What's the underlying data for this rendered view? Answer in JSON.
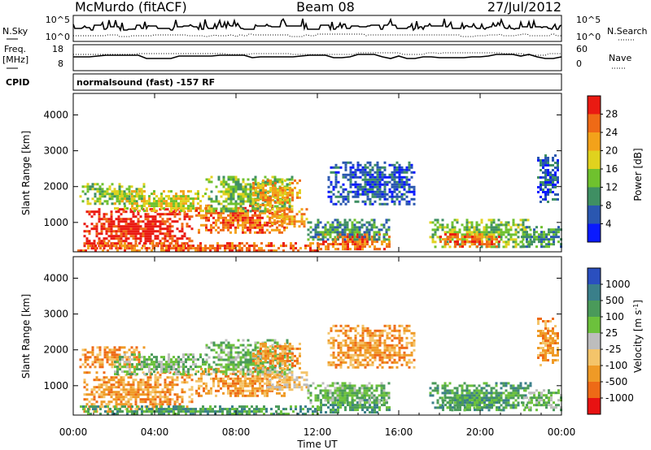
{
  "header": {
    "station": "McMurdo (fitACF)",
    "beam": "Beam 08",
    "date": "27/Jul/2012"
  },
  "panels": {
    "nsky": {
      "left_label": "N.Sky",
      "right_label": "N.Search",
      "left_ticks": [
        "10^5",
        "10^0"
      ],
      "right_ticks": [
        "10^5",
        "10^0"
      ]
    },
    "freq": {
      "left_label_1": "Freq.",
      "left_label_2": "[MHz]",
      "right_label": "Nave",
      "left_ticks": [
        "18",
        "8"
      ],
      "right_ticks": [
        "60",
        "0"
      ]
    },
    "cpid": {
      "label": "CPID",
      "text": "normalsound (fast) -157 RF"
    }
  },
  "colors": {
    "power_scale": [
      "#0a1aff",
      "#2a57b0",
      "#3f8f63",
      "#6fc12e",
      "#e0d21e",
      "#f3a21a",
      "#ef6a16",
      "#ea1a12"
    ],
    "velocity_scale": [
      "#2a4fbf",
      "#3a7f8a",
      "#4a9a5a",
      "#6cc13c",
      "#bdbdbd",
      "#f4c46a",
      "#ef9a26",
      "#ee6a16",
      "#e81212"
    ]
  },
  "chart_data": [
    {
      "type": "heatmap",
      "name": "power",
      "xlabel": "",
      "ylabel": "Slant Range [km]",
      "x_ticks": [
        "00:00",
        "04:00",
        "08:00",
        "12:00",
        "16:00",
        "20:00",
        "00:00"
      ],
      "y_ticks": [
        "1000",
        "2000",
        "3000",
        "4000"
      ],
      "y_tick_values": [
        1000,
        2000,
        3000,
        4000
      ],
      "xlim_hours": [
        0,
        24
      ],
      "ylim_km": [
        180,
        4600
      ],
      "colorbar_label": "Power [dB]",
      "colorbar_ticks": [
        "4",
        "8",
        "12",
        "16",
        "20",
        "24",
        "28"
      ],
      "regions": [
        {
          "t0": 0.5,
          "t1": 5.8,
          "r0": 300,
          "r1": 1400,
          "level": 7
        },
        {
          "t0": 0.3,
          "t1": 3.5,
          "r0": 1500,
          "r1": 2100,
          "level": 3
        },
        {
          "t0": 2.0,
          "t1": 6.5,
          "r0": 1300,
          "r1": 1900,
          "level": 4
        },
        {
          "t0": 6.0,
          "t1": 10.5,
          "r0": 700,
          "r1": 1500,
          "level": 6
        },
        {
          "t0": 6.5,
          "t1": 10.8,
          "r0": 1300,
          "r1": 2300,
          "level": 3
        },
        {
          "t0": 8.8,
          "t1": 11.2,
          "r0": 1500,
          "r1": 2200,
          "level": 5
        },
        {
          "t0": 9.5,
          "t1": 11.5,
          "r0": 900,
          "r1": 1400,
          "level": 5
        },
        {
          "t0": 0.2,
          "t1": 12.0,
          "r0": 200,
          "r1": 450,
          "level": 6
        },
        {
          "t0": 12.0,
          "t1": 15.5,
          "r0": 250,
          "r1": 700,
          "level": 6
        },
        {
          "t0": 11.5,
          "t1": 15.5,
          "r0": 500,
          "r1": 1100,
          "level": 2
        },
        {
          "t0": 12.5,
          "t1": 16.8,
          "r0": 1500,
          "r1": 2700,
          "level": 1
        },
        {
          "t0": 17.5,
          "t1": 22.5,
          "r0": 350,
          "r1": 1100,
          "level": 3
        },
        {
          "t0": 18.0,
          "t1": 21.0,
          "r0": 300,
          "r1": 700,
          "level": 6
        },
        {
          "t0": 22.0,
          "t1": 24.0,
          "r0": 300,
          "r1": 900,
          "level": 2
        },
        {
          "t0": 22.8,
          "t1": 23.8,
          "r0": 1600,
          "r1": 2900,
          "level": 1
        }
      ]
    },
    {
      "type": "heatmap",
      "name": "velocity",
      "xlabel": "Time UT",
      "ylabel": "Slant Range [km]",
      "x_ticks": [
        "00:00",
        "04:00",
        "08:00",
        "12:00",
        "16:00",
        "20:00",
        "00:00"
      ],
      "y_ticks": [
        "1000",
        "2000",
        "3000",
        "4000"
      ],
      "y_tick_values": [
        1000,
        2000,
        3000,
        4000
      ],
      "xlim_hours": [
        0,
        24
      ],
      "ylim_km": [
        180,
        4600
      ],
      "colorbar_label": "Velocity [m s^-1]",
      "colorbar_ticks": [
        "1000",
        "500",
        "100",
        "25",
        "-25",
        "-100",
        "-500",
        "-1000"
      ],
      "regions": [
        {
          "t0": 0.5,
          "t1": 5.8,
          "r0": 300,
          "r1": 1400,
          "level": 6
        },
        {
          "t0": 0.3,
          "t1": 3.5,
          "r0": 1500,
          "r1": 2100,
          "level": 6
        },
        {
          "t0": 2.0,
          "t1": 6.5,
          "r0": 1300,
          "r1": 1900,
          "level": 3
        },
        {
          "t0": 6.0,
          "t1": 10.5,
          "r0": 700,
          "r1": 1500,
          "level": 6
        },
        {
          "t0": 6.5,
          "t1": 10.8,
          "r0": 1300,
          "r1": 2300,
          "level": 3
        },
        {
          "t0": 8.8,
          "t1": 11.2,
          "r0": 1500,
          "r1": 2200,
          "level": 6
        },
        {
          "t0": 9.5,
          "t1": 11.5,
          "r0": 900,
          "r1": 1400,
          "level": 5
        },
        {
          "t0": 0.2,
          "t1": 12.0,
          "r0": 200,
          "r1": 450,
          "level": 2
        },
        {
          "t0": 12.0,
          "t1": 15.5,
          "r0": 250,
          "r1": 700,
          "level": 2
        },
        {
          "t0": 11.5,
          "t1": 15.5,
          "r0": 500,
          "r1": 1100,
          "level": 3
        },
        {
          "t0": 12.5,
          "t1": 16.8,
          "r0": 1500,
          "r1": 2700,
          "level": 6
        },
        {
          "t0": 17.5,
          "t1": 22.5,
          "r0": 350,
          "r1": 1100,
          "level": 2
        },
        {
          "t0": 18.0,
          "t1": 21.0,
          "r0": 300,
          "r1": 700,
          "level": 2
        },
        {
          "t0": 22.0,
          "t1": 24.0,
          "r0": 300,
          "r1": 900,
          "level": 3
        },
        {
          "t0": 22.8,
          "t1": 23.8,
          "r0": 1600,
          "r1": 2900,
          "level": 6
        }
      ]
    }
  ]
}
